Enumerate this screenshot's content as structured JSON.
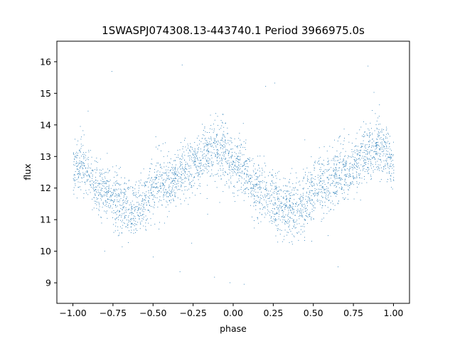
{
  "chart_data": {
    "type": "scatter",
    "title": "1SWASPJ074308.13-443740.1 Period 3966975.0s",
    "xlabel": "phase",
    "ylabel": "flux",
    "xlim": [
      -1.1,
      1.1
    ],
    "ylim": [
      8.35,
      16.65
    ],
    "xticks": [
      -1.0,
      -0.75,
      -0.5,
      -0.25,
      0.0,
      0.25,
      0.5,
      0.75,
      1.0
    ],
    "xtick_labels": [
      "−1.00",
      "−0.75",
      "−0.50",
      "−0.25",
      "0.00",
      "0.25",
      "0.50",
      "0.75",
      "1.00"
    ],
    "yticks": [
      9,
      10,
      11,
      12,
      13,
      14,
      15,
      16
    ],
    "ytick_labels": [
      "9",
      "10",
      "11",
      "12",
      "13",
      "14",
      "15",
      "16"
    ],
    "grid": false,
    "marker_color": "#1f77b4",
    "light_curve": {
      "phase_repeat": 1.0,
      "profile": [
        {
          "x": -1.0,
          "y": 12.7
        },
        {
          "x": -0.95,
          "y": 12.8
        },
        {
          "x": -0.88,
          "y": 12.1
        },
        {
          "x": -0.8,
          "y": 11.9
        },
        {
          "x": -0.7,
          "y": 11.4
        },
        {
          "x": -0.62,
          "y": 11.3
        },
        {
          "x": -0.55,
          "y": 11.6
        },
        {
          "x": -0.47,
          "y": 12.2
        },
        {
          "x": -0.4,
          "y": 12.1
        },
        {
          "x": -0.32,
          "y": 12.6
        },
        {
          "x": -0.25,
          "y": 12.7
        },
        {
          "x": -0.18,
          "y": 13.1
        },
        {
          "x": -0.1,
          "y": 13.3
        },
        {
          "x": -0.03,
          "y": 13.0
        },
        {
          "x": 0.0,
          "y": 12.7
        }
      ],
      "scatter_amplitude": 1.0,
      "outlier_range": [
        8.7,
        16.3
      ]
    }
  }
}
